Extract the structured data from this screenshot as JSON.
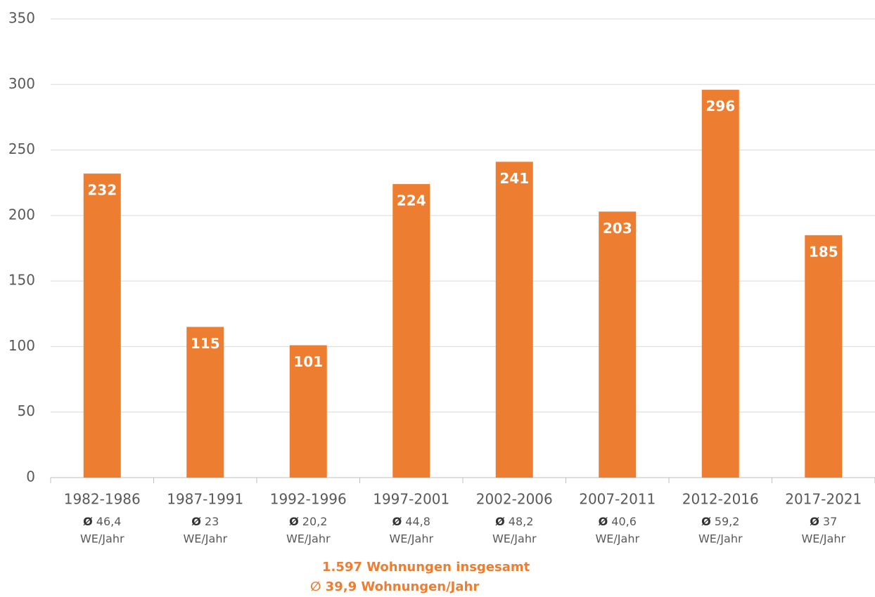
{
  "chart_data": {
    "type": "bar",
    "categories": [
      "1982-1986",
      "1987-1991",
      "1992-1996",
      "1997-2001",
      "2002-2006",
      "2007-2011",
      "2012-2016",
      "2017-2021"
    ],
    "values": [
      232,
      115,
      101,
      224,
      241,
      203,
      296,
      185
    ],
    "color": "#ed7d31",
    "ylim": [
      0,
      350
    ],
    "yticks": [
      0,
      50,
      100,
      150,
      200,
      250,
      300,
      350
    ],
    "grid": true,
    "average_symbol": "Ø",
    "averages": [
      "46,4",
      "23",
      "20,2",
      "44,8",
      "48,2",
      "40,6",
      "59,2",
      "37"
    ],
    "average_unit": "WE/Jahr",
    "annotations": [
      "1.597 Wohnungen insgesamt",
      "∅ 39,9 Wohnungen/Jahr"
    ]
  }
}
